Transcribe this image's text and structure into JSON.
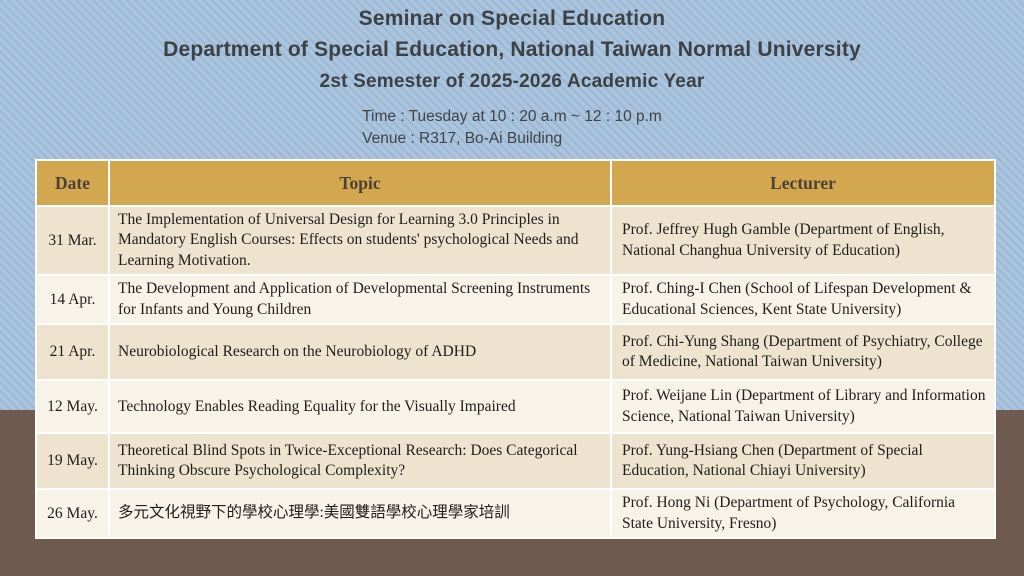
{
  "slide": {
    "title_line1": "Seminar on Special Education",
    "title_line2": "Department of Special Education, National Taiwan Normal University",
    "title_line3": "2st Semester of 2025-2026  Academic Year",
    "time_line": "Time : Tuesday at 10 : 20 a.m ~ 12 : 10 p.m",
    "venue_line": "Venue : R317, Bo-Ai Building"
  },
  "table": {
    "columns": [
      "Date",
      "Topic",
      "Lecturer"
    ],
    "rows": [
      {
        "date": "31 Mar.",
        "topic": "The Implementation of Universal Design for Learning 3.0 Principles in Mandatory English Courses: Effects on students' psychological Needs and Learning Motivation.",
        "lecturer": "Prof. Jeffrey Hugh Gamble (Department of English, National Changhua University of Education)"
      },
      {
        "date": "14 Apr.",
        "topic": "The Development and Application of Developmental Screening Instruments for Infants and Young Children",
        "lecturer": "Prof. Ching-I Chen (School of Lifespan Development & Educational Sciences, Kent State University)"
      },
      {
        "date": "21 Apr.",
        "topic": "Neurobiological Research on the Neurobiology of ADHD",
        "lecturer": "Prof. Chi-Yung Shang (Department of Psychiatry, College of Medicine, National Taiwan University)"
      },
      {
        "date": "12 May.",
        "topic": "Technology Enables Reading Equality for the Visually Impaired",
        "lecturer": "Prof. Weijane Lin (Department of Library and Information Science, National Taiwan University)"
      },
      {
        "date": "19 May.",
        "topic": "Theoretical Blind Spots in Twice-Exceptional Research: Does Categorical Thinking Obscure Psychological Complexity?",
        "lecturer": "Prof. Yung-Hsiang Chen (Department of Special Education, National Chiayi University)"
      },
      {
        "date": "26 May.",
        "topic": "多元文化視野下的學校心理學:美國雙語學校心理學家培訓",
        "lecturer": "Prof. Hong Ni (Department of Psychology, California State University, Fresno)"
      }
    ]
  },
  "colors": {
    "background_blue": "#aac4de",
    "background_stripe": "#9cb7d3",
    "background_brown": "#6e5a4e",
    "header_gold": "#d2a750",
    "row_beige": "#ede3cf",
    "row_cream": "#f8f3e9",
    "title_text": "#3d4145",
    "table_header_text": "#4a4236",
    "body_text": "#1f1d1b"
  }
}
